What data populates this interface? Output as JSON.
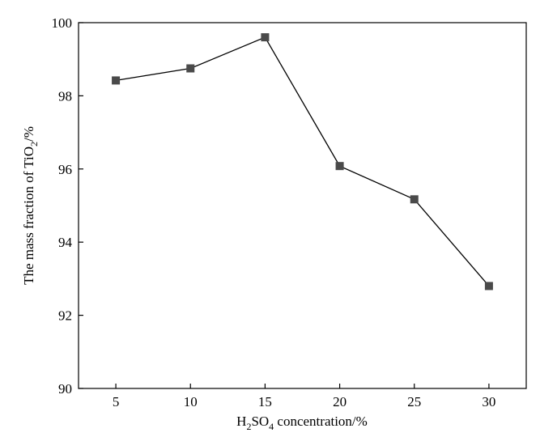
{
  "chart_data": {
    "type": "line",
    "x": [
      5,
      10,
      15,
      20,
      25,
      30
    ],
    "series": [
      {
        "values": [
          98.42,
          98.75,
          99.6,
          96.08,
          95.17,
          92.8
        ]
      }
    ],
    "xticks": [
      5,
      10,
      15,
      20,
      25,
      30
    ],
    "yticks": [
      90,
      92,
      94,
      96,
      98,
      100
    ],
    "xlim": [
      2.5,
      32.5
    ],
    "ylim": [
      90,
      100
    ],
    "xlabel": {
      "main_a": "H",
      "sub_a": "2",
      "main_b": "SO",
      "sub_b": "4",
      "main_c": " concentration/%"
    },
    "ylabel": {
      "main_a": "The mass fraction of TiO",
      "sub_a": "2",
      "main_b": "/%"
    },
    "grid": false,
    "legend": "none",
    "line_color": "#000000",
    "marker": "square",
    "marker_color": "#4a4a4a"
  }
}
